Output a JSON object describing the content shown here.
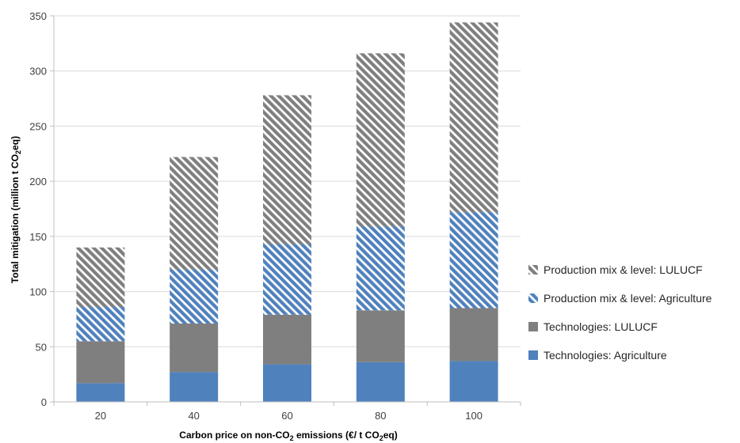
{
  "chart_data": {
    "type": "bar",
    "stacked": true,
    "categories": [
      "20",
      "40",
      "60",
      "80",
      "100"
    ],
    "series": [
      {
        "name": "Technologies: Agriculture",
        "values": [
          17,
          27,
          34,
          36,
          37
        ],
        "color": "#4f81bd",
        "pattern": "solid"
      },
      {
        "name": "Technologies: LULUCF",
        "values": [
          38,
          44,
          45,
          47,
          48
        ],
        "color": "#7f7f7f",
        "pattern": "solid"
      },
      {
        "name": "Production mix & level: Agriculture",
        "values": [
          31,
          49,
          64,
          76,
          87
        ],
        "color": "#4f81bd",
        "pattern": "hatch"
      },
      {
        "name": "Production mix & level: LULUCF",
        "values": [
          54,
          102,
          135,
          157,
          172
        ],
        "color": "#7f7f7f",
        "pattern": "hatch"
      }
    ],
    "xlabel": {
      "pre": "Carbon price on non-CO",
      "sub": "2",
      "post": " emissions (€/ t CO",
      "sub2": "2",
      "post2": "eq)"
    },
    "ylabel": {
      "pre": "Total mitigation (million t CO",
      "sub": "2",
      "post": "eq)"
    },
    "ylim": [
      0,
      350
    ],
    "yticks": [
      0,
      50,
      100,
      150,
      200,
      250,
      300,
      350
    ],
    "grid": true,
    "legend_position": "right",
    "legend_order": [
      3,
      2,
      1,
      0
    ]
  }
}
